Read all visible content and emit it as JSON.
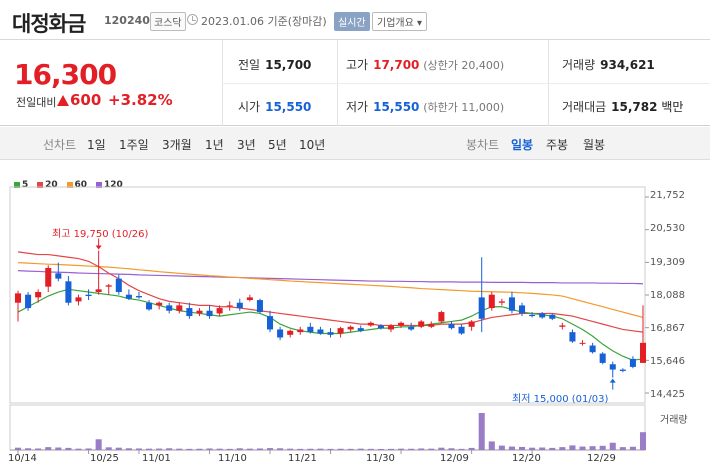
{
  "header": {
    "name": "대정화금",
    "code": "120240",
    "market": "코스닥",
    "asof": "2023.01.06 기준(장마감)",
    "realtime_label": "실시간",
    "info_label": "기업개요 ▾"
  },
  "quote": {
    "price": "16,300",
    "change_label": "전일대비",
    "change": "600",
    "change_pct": "+3.82%",
    "prev_label": "전일",
    "prev": "15,700",
    "high_label": "고가",
    "high": "17,700",
    "high_limit": "(상한가 20,400)",
    "volume_label": "거래량",
    "volume": "934,621",
    "open_label": "시가",
    "open": "15,550",
    "low_label": "저가",
    "low": "15,550",
    "low_limit": "(하한가 11,000)",
    "amount_label": "거래대금",
    "amount": "15,782",
    "amount_unit": "백만"
  },
  "tabs": {
    "line_label": "선차트",
    "periods": [
      "1일",
      "1주일",
      "3개월",
      "1년",
      "3년",
      "5년",
      "10년"
    ],
    "candle_label": "봉차트",
    "candle_periods": [
      "일봉",
      "주봉",
      "월봉"
    ],
    "active_candle": "일봉"
  },
  "chart_data": {
    "type": "candlestick",
    "ma_legend": [
      {
        "name": "5",
        "color": "#3aa53a"
      },
      {
        "name": "20",
        "color": "#e34646"
      },
      {
        "name": "60",
        "color": "#f39a2c"
      },
      {
        "name": "120",
        "color": "#9a5fd0"
      }
    ],
    "y_ticks": [
      "21,752",
      "20,530",
      "19,309",
      "18,088",
      "16,867",
      "15,646",
      "14,425"
    ],
    "y_tick_values": [
      21752,
      20530,
      19309,
      18088,
      16867,
      15646,
      14425
    ],
    "x_ticks": [
      "10/14",
      "10/25",
      "11/01",
      "11/10",
      "11/21",
      "11/30",
      "12/09",
      "12/20",
      "12/29"
    ],
    "x_tick_index": [
      0,
      7,
      12,
      19,
      25,
      31,
      38,
      45,
      51
    ],
    "volume_label": "거래량",
    "max_label": "최고 19,750 (10/26)",
    "min_label": "최저 15,000 (01/03)",
    "candles": [
      [
        17800,
        18250,
        17100,
        18150
      ],
      [
        18100,
        18200,
        17500,
        17600
      ],
      [
        18000,
        18300,
        17800,
        18200
      ],
      [
        18400,
        19200,
        18200,
        19100
      ],
      [
        18900,
        19300,
        18600,
        18700
      ],
      [
        18600,
        18800,
        17700,
        17800
      ],
      [
        17850,
        18100,
        17700,
        18000
      ],
      [
        18100,
        18300,
        17900,
        18050
      ],
      [
        18200,
        19750,
        18100,
        18300
      ],
      [
        18400,
        18500,
        18100,
        18450
      ],
      [
        18700,
        18850,
        18100,
        18200
      ],
      [
        18100,
        18300,
        17900,
        17950
      ],
      [
        18050,
        18200,
        17950,
        18000
      ],
      [
        17800,
        17900,
        17500,
        17550
      ],
      [
        17700,
        17850,
        17550,
        17800
      ],
      [
        17700,
        17800,
        17400,
        17500
      ],
      [
        17500,
        17800,
        17400,
        17700
      ],
      [
        17600,
        17800,
        17200,
        17300
      ],
      [
        17400,
        17600,
        17300,
        17500
      ],
      [
        17500,
        17700,
        17200,
        17300
      ],
      [
        17400,
        17700,
        17300,
        17600
      ],
      [
        17700,
        17850,
        17500,
        17700
      ],
      [
        17800,
        17950,
        17500,
        17600
      ],
      [
        17900,
        18100,
        17850,
        18000
      ],
      [
        17900,
        17950,
        17400,
        17450
      ],
      [
        17300,
        17500,
        16700,
        16800
      ],
      [
        16800,
        16900,
        16400,
        16500
      ],
      [
        16600,
        16800,
        16500,
        16750
      ],
      [
        16700,
        16900,
        16600,
        16800
      ],
      [
        16900,
        17050,
        16650,
        16700
      ],
      [
        16800,
        16900,
        16600,
        16650
      ],
      [
        16700,
        16850,
        16500,
        16600
      ],
      [
        16650,
        16900,
        16500,
        16850
      ],
      [
        16800,
        16950,
        16700,
        16900
      ],
      [
        16850,
        16950,
        16700,
        16750
      ],
      [
        16950,
        17100,
        16900,
        17050
      ],
      [
        16950,
        17000,
        16800,
        16850
      ],
      [
        16800,
        17000,
        16700,
        16950
      ],
      [
        16950,
        17100,
        16850,
        17050
      ],
      [
        16900,
        17050,
        16750,
        16800
      ],
      [
        16900,
        17150,
        16850,
        17100
      ],
      [
        16900,
        17100,
        16850,
        17000
      ],
      [
        17100,
        17500,
        17050,
        17450
      ],
      [
        17000,
        17100,
        16800,
        16850
      ],
      [
        16900,
        17000,
        16600,
        16650
      ],
      [
        16900,
        17150,
        16750,
        17100
      ],
      [
        18000,
        19500,
        16700,
        17200
      ],
      [
        17600,
        18200,
        17500,
        18100
      ],
      [
        17800,
        17950,
        17700,
        17850
      ],
      [
        18000,
        18200,
        17400,
        17500
      ],
      [
        17700,
        17800,
        17300,
        17400
      ],
      [
        17350,
        17450,
        17250,
        17300
      ],
      [
        17400,
        17450,
        17200,
        17250
      ],
      [
        17350,
        17400,
        17150,
        17200
      ],
      [
        16900,
        17050,
        16800,
        16950
      ],
      [
        16700,
        16800,
        16300,
        16350
      ],
      [
        16300,
        16400,
        16200,
        16300
      ],
      [
        16200,
        16300,
        15900,
        15950
      ],
      [
        15900,
        15950,
        15500,
        15550
      ],
      [
        15500,
        15600,
        15000,
        15300
      ],
      [
        15300,
        15350,
        15200,
        15250
      ],
      [
        15700,
        15800,
        15350,
        15400
      ],
      [
        15550,
        17700,
        15550,
        16300
      ]
    ],
    "ma5": [
      17450,
      17650,
      17850,
      18050,
      18200,
      18300,
      18250,
      18200,
      18150,
      18100,
      18050,
      17950,
      17900,
      17800,
      17700,
      17600,
      17500,
      17450,
      17400,
      17350,
      17300,
      17350,
      17400,
      17450,
      17400,
      17250,
      17000,
      16850,
      16750,
      16700,
      16650,
      16650,
      16650,
      16700,
      16750,
      16800,
      16850,
      16850,
      16900,
      16900,
      16950,
      17000,
      17050,
      17100,
      17150,
      17300,
      17500,
      17650,
      17650,
      17550,
      17450,
      17400,
      17350,
      17300,
      17200,
      17000,
      16800,
      16550,
      16250,
      16000,
      15800,
      15650,
      15700
    ],
    "ma20": [
      19700,
      19650,
      19600,
      19600,
      19550,
      19500,
      19450,
      19350,
      19150,
      18900,
      18700,
      18450,
      18250,
      18100,
      17950,
      17850,
      17800,
      17750,
      17700,
      17700,
      17650,
      17650,
      17600,
      17550,
      17500,
      17450,
      17400,
      17350,
      17300,
      17250,
      17200,
      17150,
      17100,
      17050,
      17000,
      17000,
      16950,
      16950,
      16950,
      16950,
      16950,
      16950,
      17000,
      17000,
      17000,
      17050,
      17150,
      17250,
      17300,
      17350,
      17400,
      17400,
      17400,
      17400,
      17350,
      17300,
      17200,
      17100,
      17000,
      16900,
      16800,
      16750,
      16700
    ],
    "ma60": [
      19300,
      19280,
      19260,
      19240,
      19230,
      19210,
      19190,
      19170,
      19150,
      19130,
      19100,
      19070,
      19030,
      19000,
      18960,
      18930,
      18900,
      18870,
      18840,
      18810,
      18790,
      18760,
      18740,
      18710,
      18690,
      18660,
      18640,
      18610,
      18590,
      18570,
      18550,
      18530,
      18510,
      18490,
      18470,
      18450,
      18430,
      18410,
      18380,
      18360,
      18330,
      18310,
      18290,
      18270,
      18250,
      18230,
      18220,
      18210,
      18200,
      18190,
      18170,
      18150,
      18120,
      18090,
      18050,
      17950,
      17850,
      17750,
      17650,
      17550,
      17450,
      17350,
      17250
    ],
    "ma120": [
      19000,
      18980,
      18970,
      18950,
      18940,
      18930,
      18910,
      18900,
      18890,
      18880,
      18870,
      18860,
      18840,
      18830,
      18820,
      18810,
      18800,
      18790,
      18780,
      18770,
      18760,
      18750,
      18740,
      18730,
      18720,
      18710,
      18700,
      18690,
      18680,
      18670,
      18660,
      18650,
      18640,
      18630,
      18620,
      18610,
      18610,
      18600,
      18600,
      18590,
      18590,
      18580,
      18580,
      18580,
      18570,
      18570,
      18570,
      18560,
      18560,
      18560,
      18560,
      18550,
      18550,
      18550,
      18540,
      18540,
      18540,
      18540,
      18530,
      18530,
      18520,
      18520,
      18510
    ],
    "volume": [
      120,
      90,
      80,
      150,
      130,
      110,
      70,
      80,
      560,
      140,
      120,
      90,
      80,
      70,
      75,
      90,
      70,
      60,
      65,
      80,
      70,
      60,
      90,
      70,
      80,
      100,
      90,
      70,
      60,
      65,
      70,
      60,
      65,
      60,
      70,
      60,
      55,
      60,
      70,
      65,
      80,
      70,
      120,
      90,
      60,
      110,
      1934,
      450,
      230,
      180,
      160,
      120,
      130,
      110,
      150,
      240,
      180,
      200,
      220,
      380,
      150,
      170,
      930
    ]
  }
}
